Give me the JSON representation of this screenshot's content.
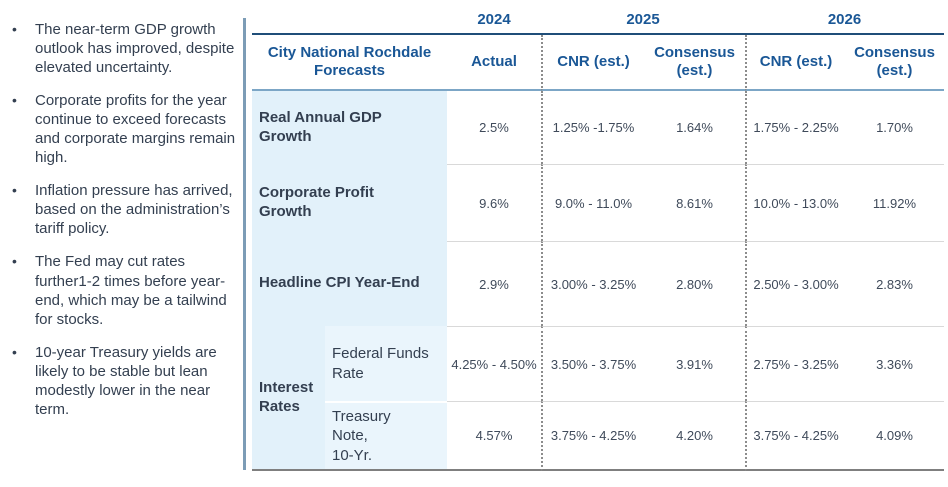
{
  "commentary": {
    "bullets": [
      "The near-term GDP growth outlook has improved, despite elevated uncertainty.",
      "Corporate profits for the year continue to exceed forecasts and corporate margins remain high.",
      "Inflation pressure has arrived, based on the administration’s tariff policy.",
      "The Fed may cut rates further1-2 times before year-end, which may be a tailwind for stocks.",
      "10-year Treasury yields are likely to be stable but lean modestly lower in the near term."
    ]
  },
  "table": {
    "title": "City National Rochdale\nForecasts",
    "years": {
      "y2024": "2024",
      "y2025": "2025",
      "y2026": "2026"
    },
    "columns": {
      "actual": "Actual",
      "cnr_2025": "CNR (est.)",
      "consensus_2025": "Consensus\n(est.)",
      "cnr_2026": "CNR (est.)",
      "consensus_2026": "Consensus\n(est.)"
    },
    "rows": [
      {
        "label": "Real Annual GDP\nGrowth",
        "values": [
          "2.5%",
          "1.25% -1.75%",
          "1.64%",
          "1.75% - 2.25%",
          "1.70%"
        ]
      },
      {
        "label": "Corporate Profit\nGrowth",
        "values": [
          "9.6%",
          "9.0% - 11.0%",
          "8.61%",
          "10.0% - 13.0%",
          "11.92%"
        ]
      },
      {
        "label": "Headline CPI Year-End",
        "values": [
          "2.9%",
          "3.00% - 3.25%",
          "2.80%",
          "2.50% - 3.00%",
          "2.83%"
        ]
      },
      {
        "group": "Interest\nRates",
        "label": "Federal Funds\nRate",
        "values": [
          "4.25% - 4.50%",
          "3.50% - 3.75%",
          "3.91%",
          "2.75% - 3.25%",
          "3.36%"
        ]
      },
      {
        "label": "Treasury\nNote,\n10-Yr.",
        "values": [
          "4.57%",
          "3.75% - 4.25%",
          "4.20%",
          "3.75% - 4.25%",
          "4.09%"
        ]
      }
    ]
  },
  "colors": {
    "header_blue": "#1A5796",
    "label_text": "#333F50",
    "value_text": "#3F4A5A",
    "label_background": "#E2F1FA",
    "sublabel_background": "#EAF5FC",
    "navy_rule": "#1F4E79",
    "steel_rule": "#7CA6C6",
    "divider": "#7C9CB6"
  }
}
